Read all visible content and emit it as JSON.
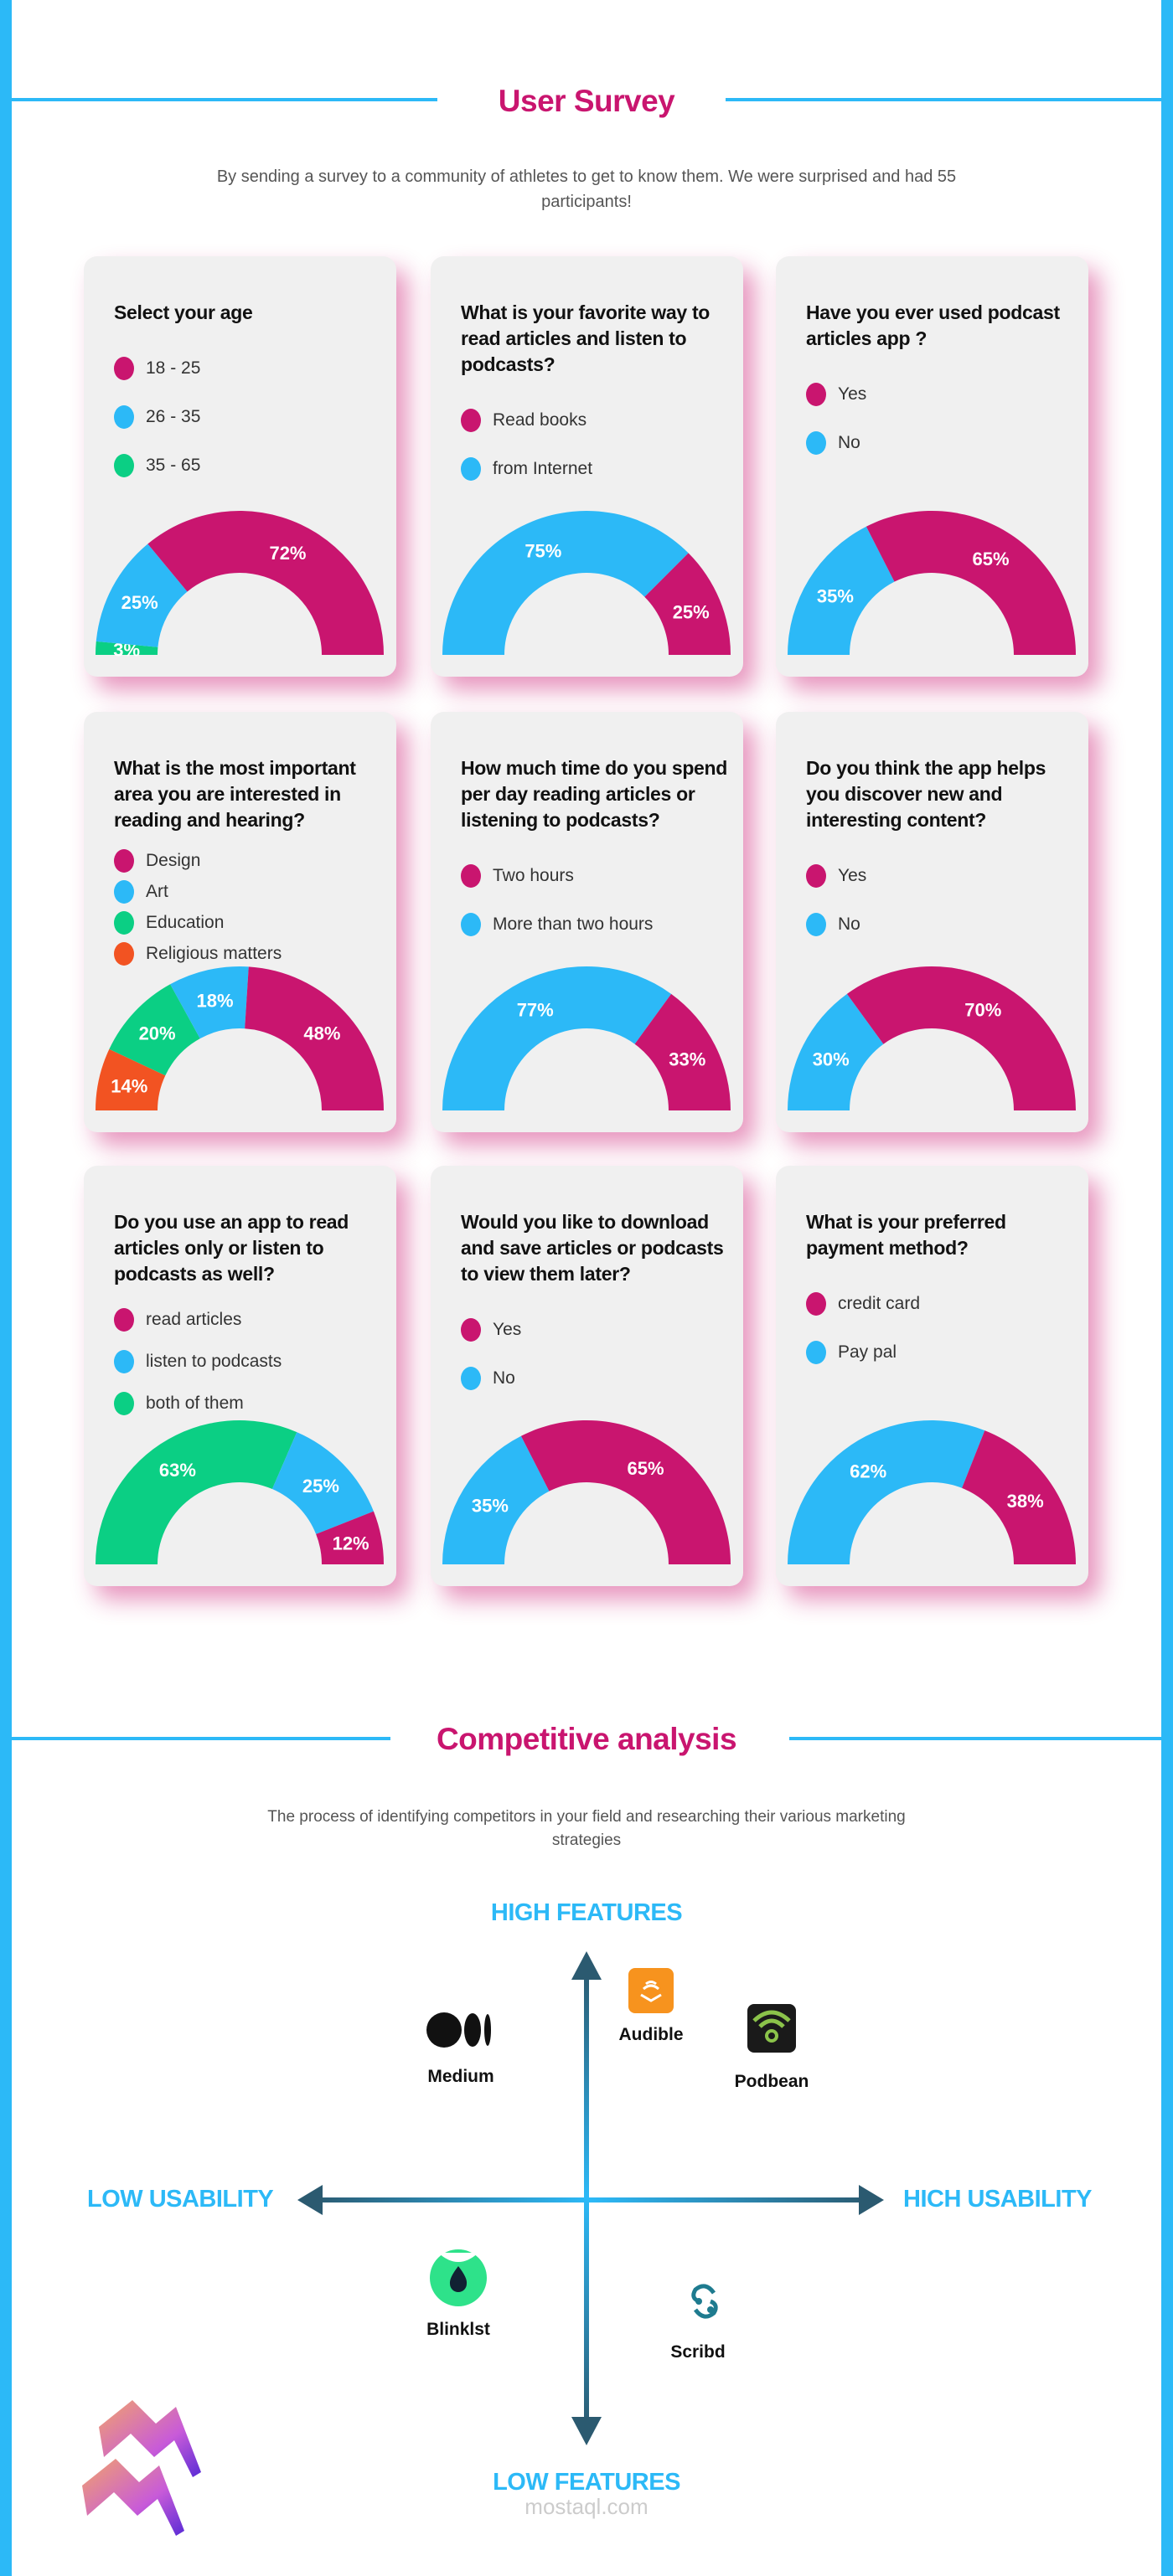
{
  "colors": {
    "magenta": "#C9156F",
    "blue": "#2CB9F7",
    "green": "#0BCF84",
    "orange": "#F25322",
    "axis": "#2B5A70"
  },
  "survey": {
    "title": "User Survey",
    "subtitle": "By sending a survey to a community of athletes to get to know them. We were surprised and had 55  participants!",
    "cards": [
      {
        "question": "Select your age",
        "legend_gap": 58,
        "options": [
          {
            "label": "18 - 25",
            "color": "magenta",
            "value": 72
          },
          {
            "label": "26 - 35",
            "color": "blue",
            "value": 25
          },
          {
            "label": "35 - 65",
            "color": "green",
            "value": 3
          }
        ],
        "order": [
          2,
          1,
          0
        ]
      },
      {
        "question": "What is your favorite way to read articles and listen to podcasts?",
        "legend_gap": 58,
        "options": [
          {
            "label": "Read books",
            "color": "magenta",
            "value": 25
          },
          {
            "label": "from Internet",
            "color": "blue",
            "value": 75
          }
        ],
        "order": [
          1,
          0
        ]
      },
      {
        "question": "Have you ever used podcast articles app ?",
        "legend_gap": 58,
        "options": [
          {
            "label": "Yes",
            "color": "magenta",
            "value": 65
          },
          {
            "label": "No",
            "color": "blue",
            "value": 35
          }
        ],
        "order": [
          1,
          0
        ]
      },
      {
        "question": "What is the most important area you are interested in reading and hearing?",
        "legend_gap": 37,
        "options": [
          {
            "label": "Design",
            "color": "magenta",
            "value": 48
          },
          {
            "label": "Art",
            "color": "blue",
            "value": 18
          },
          {
            "label": "Education",
            "color": "green",
            "value": 20
          },
          {
            "label": "Religious matters",
            "color": "orange",
            "value": 14
          }
        ],
        "order": [
          3,
          2,
          1,
          0
        ]
      },
      {
        "question": "How much time do you spend per day reading articles or listening to podcasts?",
        "legend_gap": 58,
        "options": [
          {
            "label": "Two hours",
            "color": "magenta",
            "value": 33
          },
          {
            "label": "More than two hours",
            "color": "blue",
            "value": 77
          }
        ],
        "order": [
          1,
          0
        ]
      },
      {
        "question": "Do you think the app helps you discover new and interesting content?",
        "legend_gap": 58,
        "options": [
          {
            "label": "Yes",
            "color": "magenta",
            "value": 70
          },
          {
            "label": "No",
            "color": "blue",
            "value": 30
          }
        ],
        "order": [
          1,
          0
        ]
      },
      {
        "question": "Do you use an app to read articles only or listen to podcasts as well?",
        "legend_gap": 50,
        "options": [
          {
            "label": "read articles",
            "color": "magenta",
            "value": 12
          },
          {
            "label": "listen to podcasts",
            "color": "blue",
            "value": 25
          },
          {
            "label": "both of them",
            "color": "green",
            "value": 63
          }
        ],
        "order": [
          2,
          1,
          0
        ]
      },
      {
        "question": "Would you like to download and save articles or podcasts to view them later?",
        "legend_gap": 58,
        "options": [
          {
            "label": "Yes",
            "color": "magenta",
            "value": 65
          },
          {
            "label": "No",
            "color": "blue",
            "value": 35
          }
        ],
        "order": [
          1,
          0
        ]
      },
      {
        "question": "What is your preferred payment method?",
        "legend_gap": 58,
        "options": [
          {
            "label": "credit card",
            "color": "magenta",
            "value": 38
          },
          {
            "label": "Pay pal",
            "color": "blue",
            "value": 62
          }
        ],
        "order": [
          1,
          0
        ]
      }
    ]
  },
  "competitive": {
    "title": "Competitive analysis",
    "subtitle": "The process of identifying competitors in your field and researching their various marketing strategies",
    "axes": {
      "top": "HIGH FEATURES",
      "bottom": "LOW FEATURES",
      "left": "LOW USABILITY",
      "right": "HICH USABILITY"
    },
    "competitors": [
      {
        "name": "Medium",
        "icon": "medium-logo-icon"
      },
      {
        "name": "Audible",
        "icon": "audible-logo-icon"
      },
      {
        "name": "Podbean",
        "icon": "podbean-logo-icon"
      },
      {
        "name": "Blinklst",
        "icon": "blinkist-logo-icon"
      },
      {
        "name": "Scribd",
        "icon": "scribd-logo-icon"
      }
    ]
  },
  "watermark": "mostaql.com"
}
